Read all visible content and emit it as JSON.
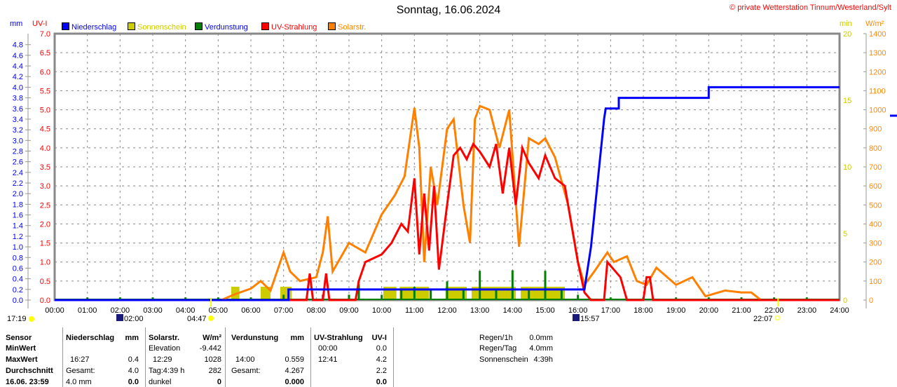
{
  "title": "Sonntag, 16.06.2024",
  "copyright": "© private Wetterstation Tinnum/Westerland/Sylt",
  "colors": {
    "rain": "#0000ff",
    "sun": "#cccc00",
    "evap": "#008000",
    "uv": "#ff0000",
    "solar": "#ff8000"
  },
  "chart_data": {
    "type": "line",
    "title": "Sonntag, 16.06.2024",
    "legend": [
      "Niederschlag",
      "Sonnenschein",
      "Verdunstung",
      "UV-Strahlung",
      "Solarstr."
    ],
    "axes": {
      "left_mm": {
        "label": "mm",
        "range": [
          0,
          4.8
        ],
        "ticks": [
          "0.0",
          "0.2",
          "0.4",
          "0.6",
          "0.8",
          "1.0",
          "1.2",
          "1.4",
          "1.6",
          "1.8",
          "2.0",
          "2.2",
          "2.4",
          "2.6",
          "2.8",
          "3.0",
          "3.2",
          "3.4",
          "3.6",
          "3.8",
          "4.0",
          "4.2",
          "4.4",
          "4.6",
          "4.8"
        ]
      },
      "left_uv": {
        "label": "UV-I",
        "range": [
          0,
          7
        ],
        "ticks": [
          "0.0",
          "0.5",
          "1.0",
          "1.5",
          "2.0",
          "2.5",
          "3.0",
          "3.5",
          "4.0",
          "4.5",
          "5.0",
          "5.5",
          "6.0",
          "6.5",
          "7.0"
        ]
      },
      "right_min": {
        "label": "min",
        "range": [
          0,
          20
        ],
        "ticks": [
          "0",
          "5",
          "10",
          "15",
          "20"
        ]
      },
      "right_wm2": {
        "label": "W/m²",
        "range": [
          0,
          1400
        ],
        "ticks": [
          "0",
          "100",
          "200",
          "300",
          "400",
          "500",
          "600",
          "700",
          "800",
          "900",
          "1000",
          "1100",
          "1200",
          "1300",
          "1400"
        ]
      },
      "x": {
        "range": [
          0,
          24
        ],
        "ticks": [
          "00:00",
          "01:00",
          "02:00",
          "03:00",
          "04:00",
          "05:00",
          "06:00",
          "07:00",
          "08:00",
          "09:00",
          "10:00",
          "11:00",
          "12:00",
          "13:00",
          "14:00",
          "15:00",
          "16:00",
          "17:00",
          "18:00",
          "19:00",
          "20:00",
          "21:00",
          "22:00",
          "23:00",
          "24:00"
        ]
      }
    },
    "series": [
      {
        "name": "Niederschlag",
        "unit": "mm",
        "points": [
          [
            0,
            0
          ],
          [
            7.15,
            0
          ],
          [
            7.15,
            0.2
          ],
          [
            16.2,
            0.2
          ],
          [
            16.3,
            0.6
          ],
          [
            16.4,
            1.0
          ],
          [
            16.5,
            1.6
          ],
          [
            16.6,
            2.2
          ],
          [
            16.7,
            2.8
          ],
          [
            16.8,
            3.4
          ],
          [
            16.85,
            3.6
          ],
          [
            17.25,
            3.6
          ],
          [
            17.25,
            3.8
          ],
          [
            20,
            3.8
          ],
          [
            20,
            4.0
          ],
          [
            24,
            4.0
          ]
        ]
      },
      {
        "name": "UV-Strahlung",
        "unit": "UV-I",
        "points": [
          [
            0,
            0
          ],
          [
            7.7,
            0
          ],
          [
            7.8,
            0.7
          ],
          [
            7.9,
            0
          ],
          [
            8.2,
            0
          ],
          [
            8.3,
            0.7
          ],
          [
            8.4,
            0
          ],
          [
            9.2,
            0
          ],
          [
            9.3,
            0.5
          ],
          [
            9.5,
            1.0
          ],
          [
            10,
            1.2
          ],
          [
            10.3,
            1.5
          ],
          [
            10.6,
            2.0
          ],
          [
            10.8,
            1.8
          ],
          [
            11,
            3.2
          ],
          [
            11.15,
            1.2
          ],
          [
            11.3,
            2.8
          ],
          [
            11.45,
            1.3
          ],
          [
            11.6,
            3.0
          ],
          [
            11.75,
            0.8
          ],
          [
            12,
            2.5
          ],
          [
            12.2,
            3.8
          ],
          [
            12.4,
            4.0
          ],
          [
            12.6,
            3.7
          ],
          [
            12.8,
            4.1
          ],
          [
            13,
            3.9
          ],
          [
            13.3,
            3.5
          ],
          [
            13.5,
            4.1
          ],
          [
            13.7,
            2.8
          ],
          [
            13.9,
            4.0
          ],
          [
            14.1,
            2.5
          ],
          [
            14.3,
            4.0
          ],
          [
            14.5,
            3.6
          ],
          [
            14.8,
            3.2
          ],
          [
            15,
            3.8
          ],
          [
            15.3,
            3.2
          ],
          [
            15.6,
            3.0
          ],
          [
            15.8,
            2.0
          ],
          [
            16,
            1.0
          ],
          [
            16.2,
            0.2
          ],
          [
            16.4,
            0
          ],
          [
            16.8,
            0
          ],
          [
            16.9,
            1.0
          ],
          [
            17.1,
            0.8
          ],
          [
            17.3,
            0.6
          ],
          [
            17.5,
            0
          ],
          [
            18,
            0
          ],
          [
            18.1,
            0.6
          ],
          [
            18.2,
            0.6
          ],
          [
            18.3,
            0
          ],
          [
            24,
            0
          ]
        ]
      },
      {
        "name": "Solarstr.",
        "unit": "W/m²",
        "points": [
          [
            0,
            0
          ],
          [
            5.1,
            0
          ],
          [
            5.5,
            30
          ],
          [
            6,
            60
          ],
          [
            6.3,
            100
          ],
          [
            6.6,
            50
          ],
          [
            7,
            250
          ],
          [
            7.2,
            150
          ],
          [
            7.5,
            100
          ],
          [
            8,
            120
          ],
          [
            8.2,
            250
          ],
          [
            8.35,
            440
          ],
          [
            8.5,
            150
          ],
          [
            9,
            300
          ],
          [
            9.5,
            250
          ],
          [
            10,
            450
          ],
          [
            10.4,
            550
          ],
          [
            10.7,
            650
          ],
          [
            11,
            1010
          ],
          [
            11.15,
            800
          ],
          [
            11.3,
            200
          ],
          [
            11.5,
            700
          ],
          [
            11.7,
            500
          ],
          [
            12,
            900
          ],
          [
            12.2,
            950
          ],
          [
            12.5,
            500
          ],
          [
            12.7,
            300
          ],
          [
            12.85,
            950
          ],
          [
            13,
            1020
          ],
          [
            13.3,
            1000
          ],
          [
            13.6,
            800
          ],
          [
            13.9,
            1000
          ],
          [
            14.2,
            280
          ],
          [
            14.5,
            850
          ],
          [
            14.8,
            820
          ],
          [
            15,
            850
          ],
          [
            15.3,
            750
          ],
          [
            15.7,
            500
          ],
          [
            16,
            200
          ],
          [
            16.2,
            80
          ],
          [
            16.5,
            150
          ],
          [
            16.9,
            250
          ],
          [
            17.1,
            200
          ],
          [
            17.5,
            230
          ],
          [
            17.8,
            100
          ],
          [
            18.1,
            80
          ],
          [
            18.4,
            170
          ],
          [
            19,
            80
          ],
          [
            19.5,
            120
          ],
          [
            19.9,
            20
          ],
          [
            20.5,
            50
          ],
          [
            21,
            40
          ],
          [
            21.3,
            40
          ],
          [
            21.6,
            0
          ],
          [
            24,
            0
          ]
        ]
      },
      {
        "name": "Sonnenschein",
        "unit": "min",
        "bars": [
          [
            5.4,
            5.65,
            1
          ],
          [
            6.3,
            6.6,
            1
          ],
          [
            6.9,
            7.25,
            1
          ],
          [
            10.05,
            10.45,
            1
          ],
          [
            10.55,
            11.45,
            1
          ],
          [
            11.95,
            12.6,
            1
          ],
          [
            12.75,
            14.1,
            1
          ],
          [
            14.25,
            15.6,
            1
          ]
        ]
      },
      {
        "name": "Verdunstung",
        "unit": "mm",
        "spikes": [
          [
            1,
            0.05
          ],
          [
            2,
            0.05
          ],
          [
            3,
            0.05
          ],
          [
            4,
            0.05
          ],
          [
            5,
            0.05
          ],
          [
            6,
            0.05
          ],
          [
            7,
            0.1
          ],
          [
            8.2,
            0.1
          ],
          [
            9,
            0.1
          ],
          [
            9.3,
            0.3
          ],
          [
            10,
            0.1
          ],
          [
            10.6,
            0.2
          ],
          [
            11,
            0.25
          ],
          [
            11.5,
            0.2
          ],
          [
            12,
            0.35
          ],
          [
            12.5,
            0.2
          ],
          [
            13,
            0.55
          ],
          [
            13.5,
            0.2
          ],
          [
            14,
            0.56
          ],
          [
            14.5,
            0.2
          ],
          [
            15,
            0.55
          ],
          [
            15.5,
            0.2
          ],
          [
            16,
            0.1
          ],
          [
            17,
            0.05
          ],
          [
            18,
            0.05
          ],
          [
            19,
            0.05
          ],
          [
            20,
            0.05
          ],
          [
            21,
            0.05
          ],
          [
            22,
            0.05
          ],
          [
            23,
            0.05
          ]
        ]
      }
    ]
  },
  "markers": {
    "sunset_prev": "17:19",
    "moon_set": "02:00",
    "sunrise": "04:47",
    "moon_rise": "15:57",
    "sunset": "22:07"
  },
  "table": {
    "col1": [
      "Sensor",
      "MinWert",
      "MaxWert",
      "Durchschnitt",
      "16.06. 23:59"
    ],
    "rain": {
      "head": [
        "Niederschlag",
        "mm"
      ],
      "rows": [
        [
          "",
          ""
        ],
        [
          "16:27",
          "0.4"
        ],
        [
          "Gesamt:",
          "4.0"
        ],
        [
          "4.0 mm",
          "0.0"
        ]
      ]
    },
    "solar": {
      "head": [
        "Solarstr.",
        "W/m²"
      ],
      "rows": [
        [
          "Elevation",
          "-9.442"
        ],
        [
          "12:29",
          "1028"
        ],
        [
          "Tag:4:39 h",
          "282"
        ],
        [
          "dunkel",
          "0"
        ]
      ]
    },
    "evap": {
      "head": [
        "Verdunstung",
        "mm"
      ],
      "rows": [
        [
          "",
          ""
        ],
        [
          "14:00",
          "0.559"
        ],
        [
          "Gesamt:",
          "4.267"
        ],
        [
          "",
          "0.000"
        ]
      ]
    },
    "uv": {
      "head": [
        "UV-Strahlung",
        "UV-I"
      ],
      "rows": [
        [
          "00:00",
          "0.0"
        ],
        [
          "12:41",
          "4.2"
        ],
        [
          "",
          "2.2"
        ],
        [
          "",
          "0.0"
        ]
      ]
    },
    "summary": [
      [
        "Regen/1h",
        "0.0mm"
      ],
      [
        "Regen/Tag",
        "4.0mm"
      ],
      [
        "Sonnenschein",
        "4:39h"
      ]
    ]
  }
}
